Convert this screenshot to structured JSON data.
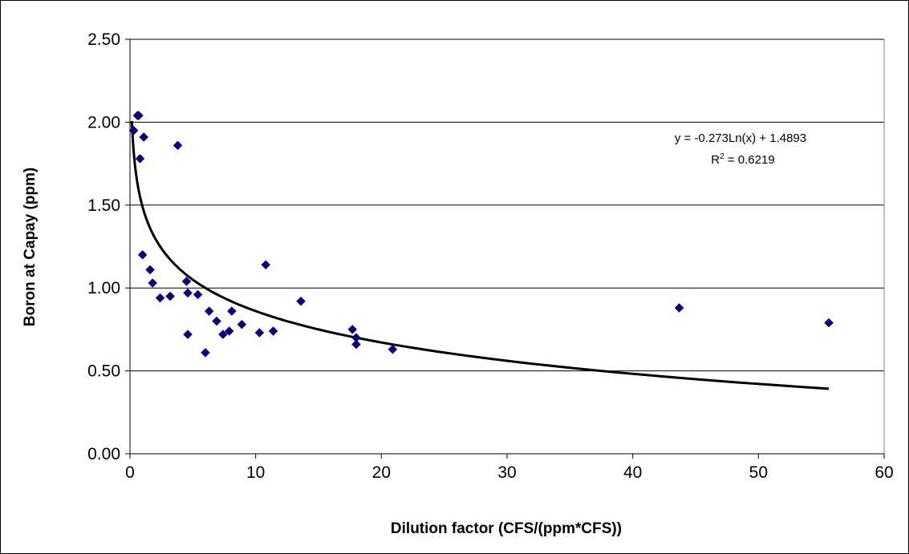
{
  "chart_data": {
    "type": "scatter",
    "xlabel": "Dilution factor (CFS/(ppm*CFS))",
    "ylabel": "Boron at Capay (ppm)",
    "xlim": [
      0,
      60
    ],
    "ylim": [
      0,
      2.5
    ],
    "x_ticks": [
      "0",
      "10",
      "20",
      "30",
      "40",
      "50",
      "60"
    ],
    "y_ticks": [
      "0.00",
      "0.50",
      "1.00",
      "1.50",
      "2.00",
      "2.50"
    ],
    "grid": "horizontal major gridlines",
    "legend": "none",
    "marker_color": "#000080",
    "trendline_color": "#000000",
    "series": [
      {
        "points": [
          [
            0.3,
            1.95
          ],
          [
            0.6,
            2.04
          ],
          [
            0.7,
            2.04
          ],
          [
            0.8,
            1.78
          ],
          [
            1.1,
            1.91
          ],
          [
            3.8,
            1.86
          ],
          [
            1.0,
            1.2
          ],
          [
            1.6,
            1.11
          ],
          [
            1.8,
            1.03
          ],
          [
            2.4,
            0.94
          ],
          [
            3.2,
            0.95
          ],
          [
            4.5,
            1.04
          ],
          [
            4.6,
            0.97
          ],
          [
            5.4,
            0.96
          ],
          [
            4.6,
            0.72
          ],
          [
            6.3,
            0.86
          ],
          [
            6.9,
            0.8
          ],
          [
            7.4,
            0.72
          ],
          [
            7.9,
            0.74
          ],
          [
            8.1,
            0.86
          ],
          [
            8.9,
            0.78
          ],
          [
            6.0,
            0.61
          ],
          [
            10.3,
            0.73
          ],
          [
            10.8,
            1.14
          ],
          [
            11.4,
            0.74
          ],
          [
            13.6,
            0.92
          ],
          [
            17.7,
            0.75
          ],
          [
            18.0,
            0.7
          ],
          [
            18.0,
            0.66
          ],
          [
            20.9,
            0.63
          ],
          [
            43.7,
            0.88
          ],
          [
            55.6,
            0.79
          ]
        ]
      }
    ],
    "trendline": {
      "type": "logarithmic",
      "a": -0.273,
      "b": 1.4893,
      "x_range": [
        0.15,
        55.6
      ],
      "equation_prefix": "y = -0.273Ln(x) + 1.4893",
      "r2_prefix": "R",
      "r2_superscript": "2",
      "r2_value": " = 0.6219"
    }
  }
}
